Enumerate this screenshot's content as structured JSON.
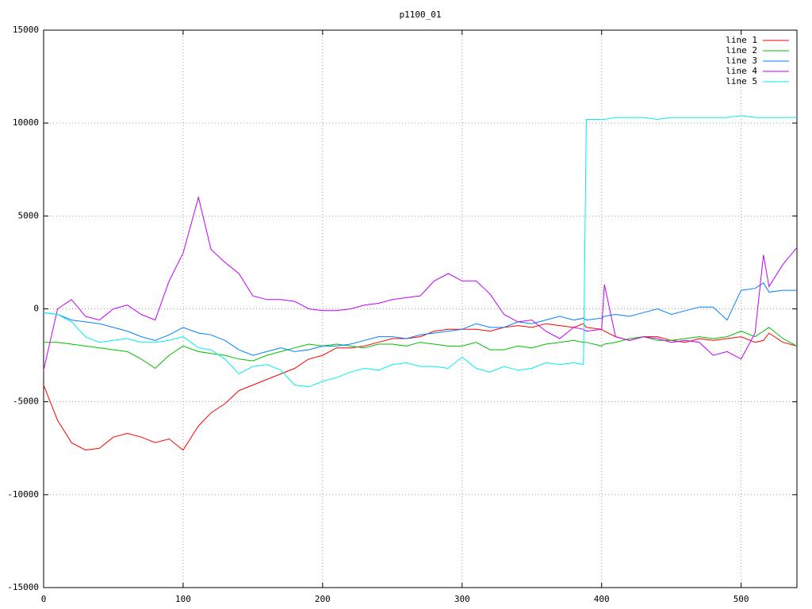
{
  "chart_data": {
    "type": "line",
    "title": "p1100_01",
    "x": [
      0,
      10,
      20,
      30,
      40,
      50,
      60,
      70,
      80,
      90,
      100,
      111,
      120,
      130,
      140,
      150,
      160,
      170,
      180,
      190,
      200,
      210,
      220,
      230,
      240,
      250,
      260,
      270,
      280,
      290,
      300,
      310,
      320,
      330,
      340,
      350,
      360,
      370,
      380,
      387,
      389,
      400,
      402,
      410,
      420,
      430,
      440,
      450,
      460,
      470,
      480,
      490,
      500,
      510,
      516,
      520,
      530,
      540
    ],
    "series": [
      {
        "name": "line 1",
        "color": "#ff0000",
        "values": [
          -4100,
          -6000,
          -7200,
          -7600,
          -7500,
          -6900,
          -6700,
          -6900,
          -7200,
          -7000,
          -7600,
          -6300,
          -5600,
          -5100,
          -4400,
          -4100,
          -3800,
          -3500,
          -3200,
          -2700,
          -2500,
          -2100,
          -2100,
          -2000,
          -1800,
          -1600,
          -1600,
          -1500,
          -1200,
          -1100,
          -1100,
          -1100,
          -1200,
          -1000,
          -900,
          -1000,
          -800,
          -900,
          -1000,
          -800,
          -1000,
          -1100,
          -1200,
          -1500,
          -1700,
          -1500,
          -1500,
          -1700,
          -1800,
          -1600,
          -1700,
          -1600,
          -1500,
          -1800,
          -1700,
          -1300,
          -1800,
          -2000
        ]
      },
      {
        "name": "line 2",
        "color": "#00c000",
        "values": [
          -1800,
          -1800,
          -1900,
          -2000,
          -2100,
          -2200,
          -2300,
          -2700,
          -3200,
          -2500,
          -2000,
          -2300,
          -2400,
          -2500,
          -2700,
          -2800,
          -2500,
          -2300,
          -2100,
          -1900,
          -2000,
          -1900,
          -2000,
          -2100,
          -1900,
          -1900,
          -2000,
          -1800,
          -1900,
          -2000,
          -2000,
          -1800,
          -2200,
          -2200,
          -2000,
          -2100,
          -1900,
          -1800,
          -1700,
          -1800,
          -1800,
          -2000,
          -1900,
          -1800,
          -1600,
          -1500,
          -1700,
          -1700,
          -1600,
          -1500,
          -1600,
          -1500,
          -1200,
          -1500,
          -1200,
          -1000,
          -1600,
          -2000
        ]
      },
      {
        "name": "line 3",
        "color": "#0080ff",
        "values": [
          -200,
          -300,
          -600,
          -700,
          -800,
          -1000,
          -1200,
          -1500,
          -1700,
          -1400,
          -1000,
          -1300,
          -1400,
          -1700,
          -2200,
          -2500,
          -2300,
          -2100,
          -2300,
          -2200,
          -2000,
          -2000,
          -1900,
          -1700,
          -1500,
          -1500,
          -1600,
          -1400,
          -1300,
          -1200,
          -1100,
          -800,
          -1000,
          -1000,
          -700,
          -800,
          -600,
          -400,
          -600,
          -500,
          -600,
          -500,
          -400,
          -300,
          -400,
          -200,
          0,
          -300,
          -100,
          100,
          100,
          -600,
          1000,
          1100,
          1400,
          900,
          1000,
          1000
        ]
      },
      {
        "name": "line 4",
        "color": "#c000ff",
        "values": [
          -3300,
          0,
          500,
          -400,
          -600,
          0,
          200,
          -300,
          -600,
          1500,
          3000,
          6000,
          3200,
          2500,
          1900,
          700,
          500,
          500,
          400,
          0,
          -100,
          -100,
          0,
          200,
          300,
          500,
          600,
          700,
          1500,
          1900,
          1500,
          1500,
          800,
          -300,
          -700,
          -600,
          -1200,
          -1600,
          -1000,
          -1100,
          -1200,
          -1100,
          1300,
          -1500,
          -1700,
          -1500,
          -1600,
          -1800,
          -1700,
          -1800,
          -2500,
          -2300,
          -2700,
          -1300,
          2900,
          1200,
          2400,
          3300
        ]
      },
      {
        "name": "line 5",
        "color": "#00eeee",
        "values": [
          -200,
          -300,
          -700,
          -1500,
          -1800,
          -1700,
          -1600,
          -1800,
          -1800,
          -1700,
          -1500,
          -2100,
          -2200,
          -2700,
          -3500,
          -3100,
          -3000,
          -3300,
          -4100,
          -4200,
          -3900,
          -3700,
          -3400,
          -3200,
          -3300,
          -3000,
          -2900,
          -3100,
          -3100,
          -3200,
          -2600,
          -3200,
          -3400,
          -3100,
          -3300,
          -3200,
          -2900,
          -3000,
          -2900,
          -3000,
          10200,
          10200,
          10200,
          10300,
          10300,
          10300,
          10200,
          10300,
          10300,
          10300,
          10300,
          10300,
          10400,
          10300,
          10300,
          10300,
          10300,
          10300
        ]
      }
    ],
    "xlim": [
      0,
      540
    ],
    "xticks": [
      0,
      100,
      200,
      300,
      400,
      500
    ],
    "ylim": [
      -15000,
      15000
    ],
    "yticks": [
      -15000,
      -10000,
      -5000,
      0,
      5000,
      10000,
      15000
    ],
    "grid": true,
    "legend": "top-right"
  }
}
